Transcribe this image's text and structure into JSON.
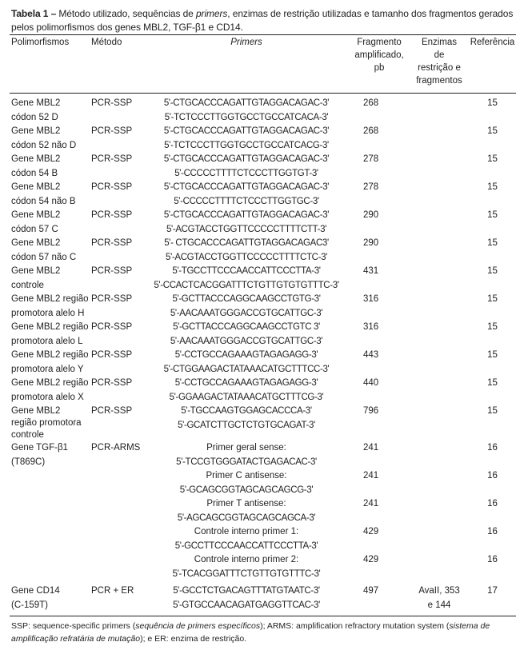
{
  "caption": {
    "label": "Tabela 1 –",
    "text_a": " Método utilizado, sequências de ",
    "text_em": "primers",
    "text_b": ", enzimas de restrição utilizadas e tamanho dos fragmentos gerados pelos polimorfismos dos genes MBL2, TGF-β1 e CD14."
  },
  "headers": {
    "polimorfismos": "Polimorfismos",
    "metodo": "Método",
    "primers": "Primers",
    "fragmento": [
      "Fragmento",
      "amplificado,",
      "pb"
    ],
    "enzimas": [
      "Enzimas",
      "de",
      "restrição e",
      "fragmentos"
    ],
    "referencia": "Referência"
  },
  "rows": [
    {
      "poly": [
        "Gene MBL2",
        "códon 52 D"
      ],
      "method": "PCR-SSP",
      "primers": [
        "5'-CTGCACCCAGATTGTAGGACAGAC-3'",
        "5'-TCTCCCTTGGTGCCTGCCATCACA-3'"
      ],
      "fragment": "268",
      "enzymes": [],
      "ref": "15"
    },
    {
      "poly": [
        "Gene MBL2",
        "códon 52 não D"
      ],
      "method": "PCR-SSP",
      "primers": [
        "5'-CTGCACCCAGATTGTAGGACAGAC-3'",
        "5'-TCTCCCTTGGTGCCTGCCATCACG-3'"
      ],
      "fragment": "268",
      "enzymes": [],
      "ref": "15"
    },
    {
      "poly": [
        "Gene MBL2",
        "códon 54 B"
      ],
      "method": "PCR-SSP",
      "primers": [
        "5'-CTGCACCCAGATTGTAGGACAGAC-3'",
        "5'-CCCCCTTTTCTCCCTTGGTGT-3'"
      ],
      "fragment": "278",
      "enzymes": [],
      "ref": "15"
    },
    {
      "poly": [
        "Gene MBL2",
        "códon 54 não B"
      ],
      "method": "PCR-SSP",
      "primers": [
        "5'-CTGCACCCAGATTGTAGGACAGAC-3'",
        "5'-CCCCCTTTTCTCCCTTGGTGC-3'"
      ],
      "fragment": "278",
      "enzymes": [],
      "ref": "15"
    },
    {
      "poly": [
        "Gene MBL2",
        "códon 57 C"
      ],
      "method": "PCR-SSP",
      "primers": [
        "5'-CTGCACCCAGATTGTAGGACAGAC-3'",
        "5'-ACGTACCTGGTTCCCCCTTTTCTT-3'"
      ],
      "fragment": "290",
      "enzymes": [],
      "ref": "15"
    },
    {
      "poly": [
        "Gene MBL2",
        "códon 57 não C"
      ],
      "method": "PCR-SSP",
      "primers": [
        "5'- CTGCACCCAGATTGTAGGACAGAC3'",
        "5'-ACGTACCTGGTTCCCCCTTTTCTC-3'"
      ],
      "fragment": "290",
      "enzymes": [],
      "ref": "15"
    },
    {
      "poly": [
        "Gene MBL2",
        "controle"
      ],
      "method": "PCR-SSP",
      "primers": [
        "5'-TGCCTTCCCAACCATTCCCTTA-3'",
        "5'-CCACTCACGGATTTCTGTTGTGTGTTTC-3'"
      ],
      "fragment": "431",
      "enzymes": [],
      "ref": "15"
    },
    {
      "poly": [
        "Gene MBL2 região",
        "promotora alelo H"
      ],
      "method": "PCR-SSP",
      "primers": [
        "5'-GCTTACCCAGGCAAGCCTGTG-3'",
        "5'-AACAAATGGGACCGTGCATTGC-3'"
      ],
      "fragment": "316",
      "enzymes": [],
      "ref": "15"
    },
    {
      "poly": [
        "Gene MBL2 região",
        "promotora alelo L"
      ],
      "method": "PCR-SSP",
      "primers": [
        "5'-GCTTACCCAGGCAAGCCTGTC 3'",
        "5'-AACAAATGGGACCGTGCATTGC-3'"
      ],
      "fragment": "316",
      "enzymes": [],
      "ref": "15"
    },
    {
      "poly": [
        "Gene MBL2 região",
        "promotora alelo Y"
      ],
      "method": "PCR-SSP",
      "primers": [
        "5'-CCTGCCAGAAAGTAGAGAGG-3'",
        "5'-CTGGAAGACTATAAACATGCTTTCC-3'"
      ],
      "fragment": "443",
      "enzymes": [],
      "ref": "15"
    },
    {
      "poly": [
        "Gene MBL2 região",
        "promotora alelo X"
      ],
      "method": "PCR-SSP",
      "primers": [
        "5'-CCTGCCAGAAAGTAGAGAGG-3'",
        "5'-GGAAGACTATAAACATGCTTTCG-3'"
      ],
      "fragment": "440",
      "enzymes": [],
      "ref": "15"
    },
    {
      "poly": [
        "Gene MBL2",
        "região promotora",
        "controle"
      ],
      "method": "PCR-SSP",
      "primers": [
        "5'-TGCCAAGTGGAGCACCCA-3'",
        "5'-GCATCTTGCTCTGTGCAGAT-3'"
      ],
      "fragment": "796",
      "enzymes": [],
      "ref": "15"
    }
  ],
  "tgf": {
    "poly": [
      "Gene TGF-β1",
      "(T869C)"
    ],
    "method": "PCR-ARMS",
    "subrows": [
      {
        "label": "Primer geral sense:",
        "seq": "5'-TCCGTGGGATACTGAGACAC-3'",
        "fragment": "241",
        "ref": "16"
      },
      {
        "label": "Primer C antisense:",
        "seq": "5'-GCAGCGGTAGCAGCAGCG-3'",
        "fragment": "241",
        "ref": "16"
      },
      {
        "label": "Primer T antisense:",
        "seq": "5'-AGCAGCGGTAGCAGCAGCA-3'",
        "fragment": "241",
        "ref": "16"
      },
      {
        "label": "Controle interno primer 1:",
        "seq": "5'-GCCTTCCCAACCATTCCCTTA-3'",
        "fragment": "429",
        "ref": "16"
      },
      {
        "label": "Controle interno primer 2:",
        "seq": "5'-TCACGGATTTCTGTTGTGTTTC-3'",
        "fragment": "429",
        "ref": "16"
      }
    ]
  },
  "cd14": {
    "poly": [
      "Gene CD14",
      "(C-159T)"
    ],
    "method": "PCR + ER",
    "primers": [
      "5'-GCCTCTGACAGTTTATGTAATC-3'",
      "5'-GTGCCAACAGATGAGGTTCAC-3'"
    ],
    "fragment": "497",
    "enzymes": [
      "AvaII, 353",
      "e 144"
    ],
    "ref": "17"
  },
  "footnote": {
    "a": "SSP: sequence-specific primers (",
    "a_em": "sequência de primers específicos",
    "b": "); ARMS: amplification refractory mutation system (",
    "b_em": "sistema de amplificação refratária de mutação",
    "c": "); e ER: enzima de restrição."
  }
}
